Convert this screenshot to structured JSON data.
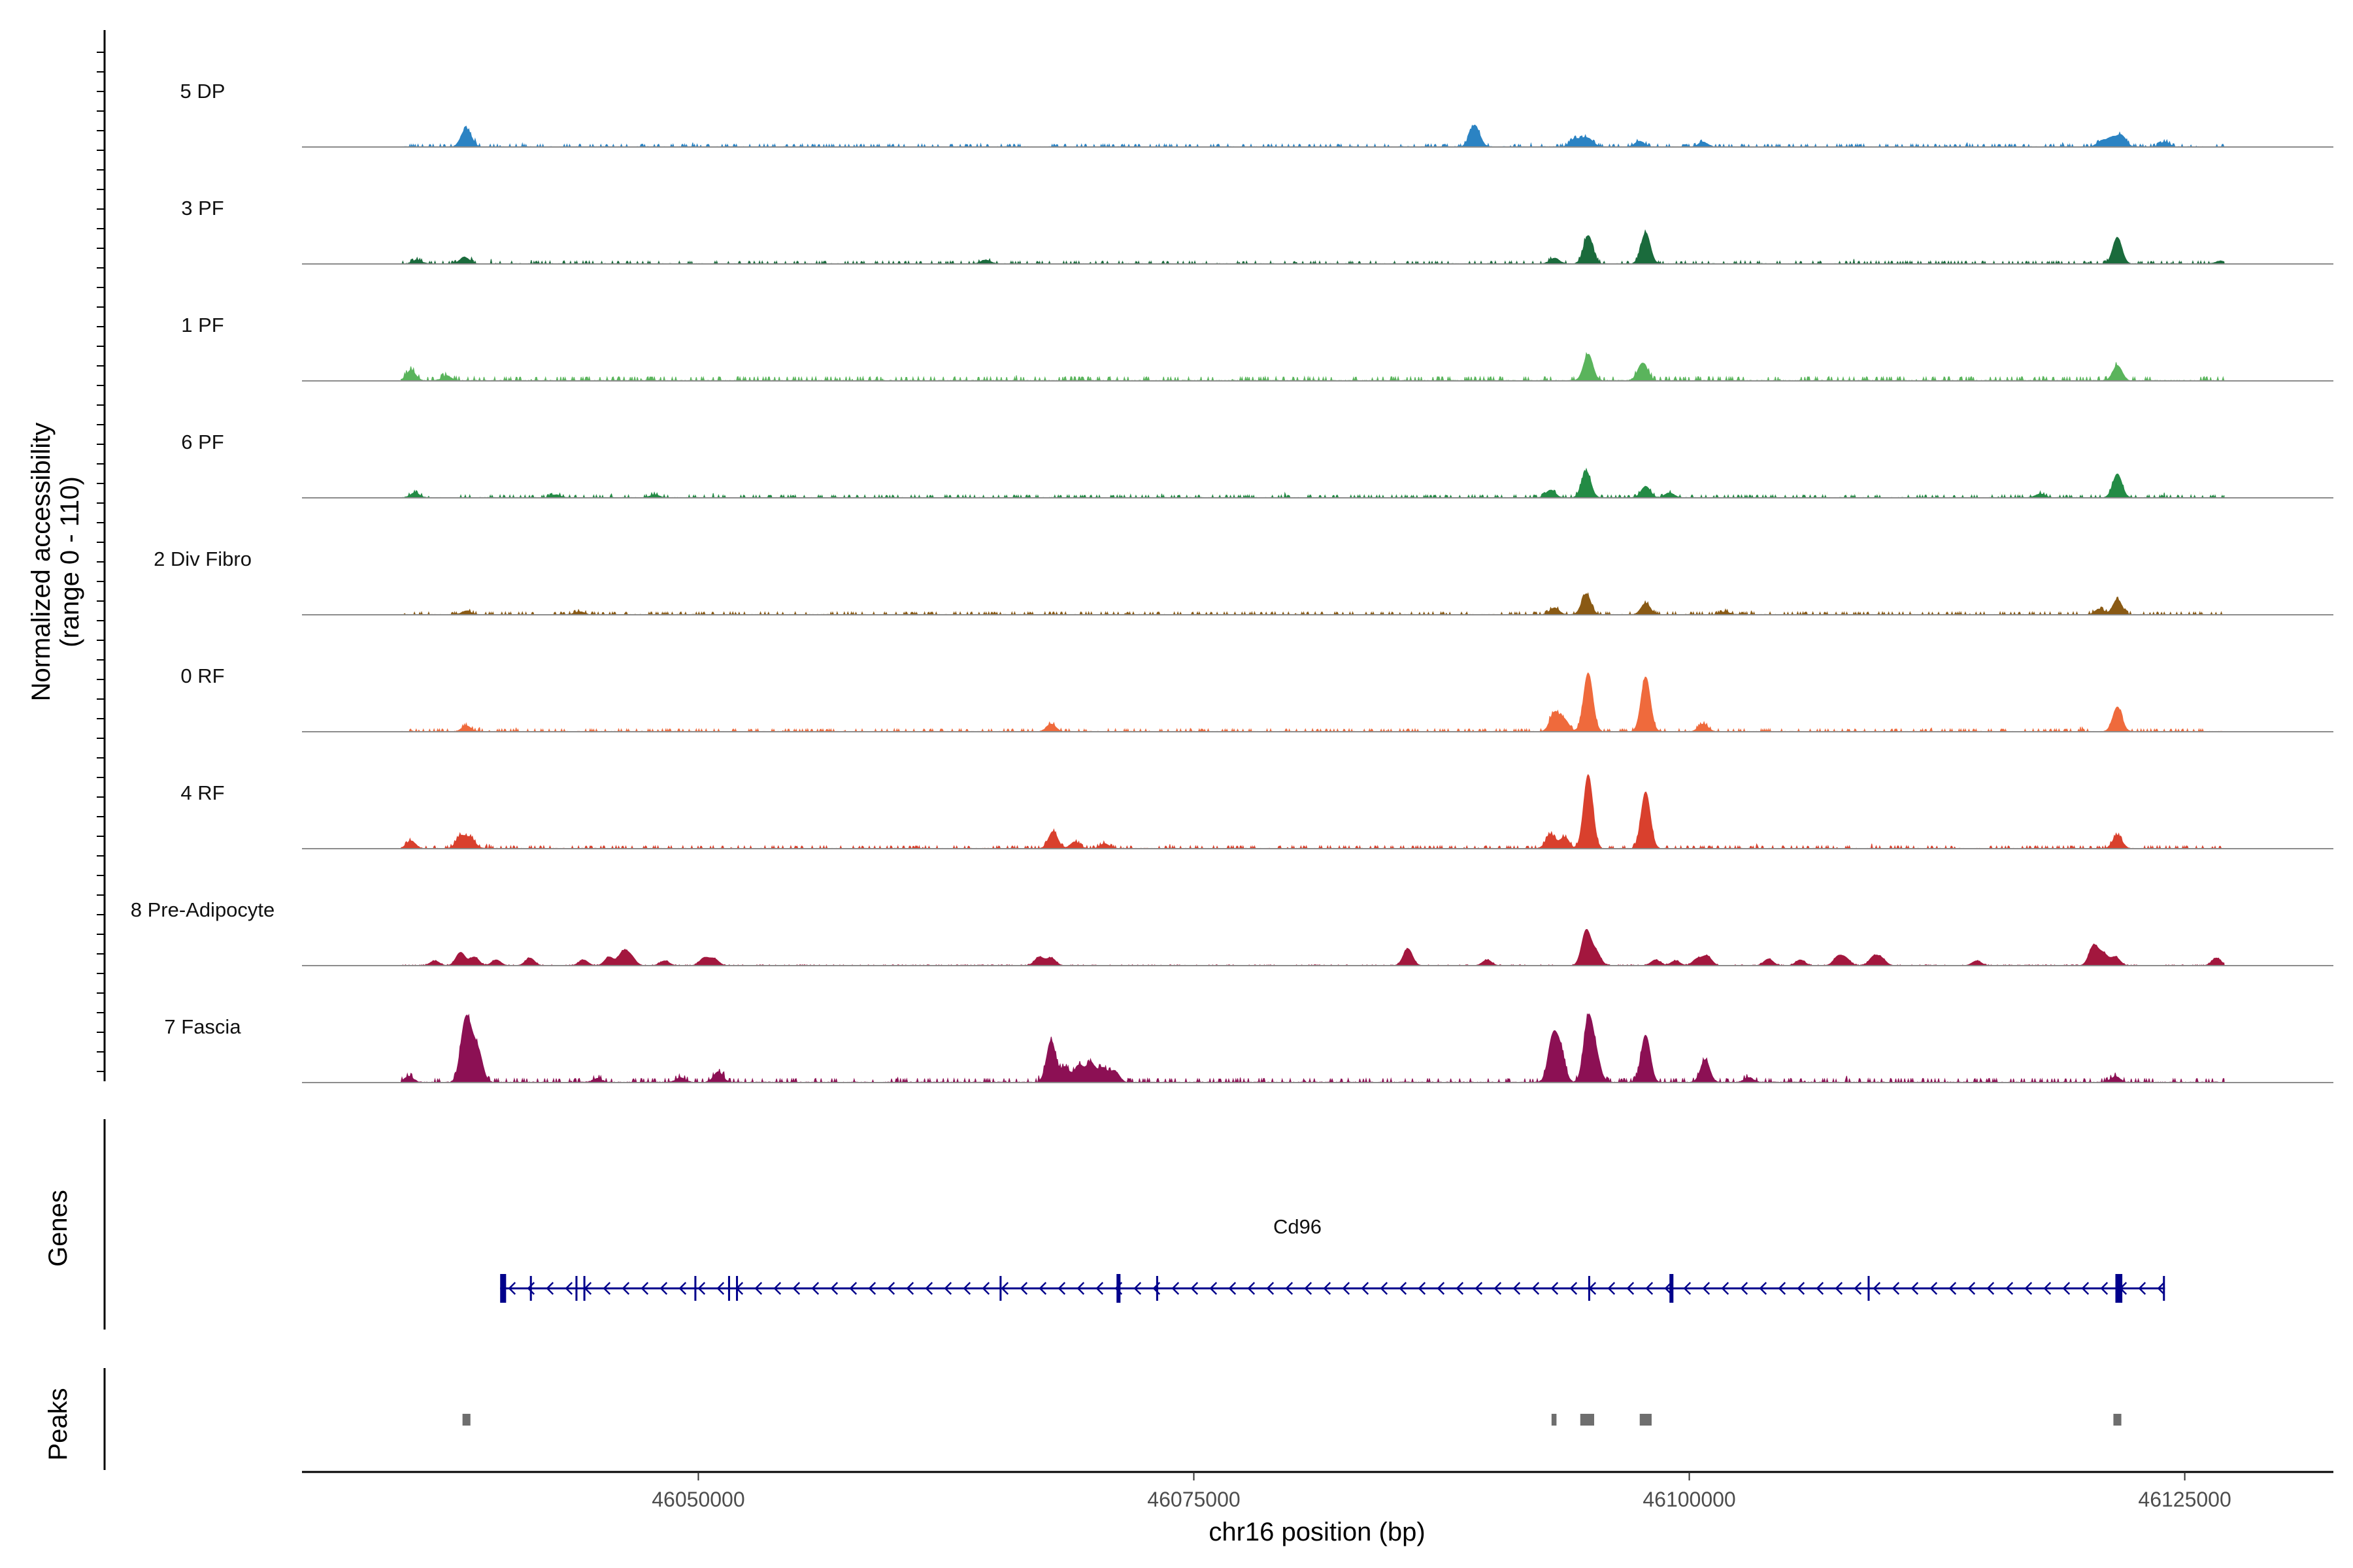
{
  "chart_data": {
    "type": "area",
    "ylabel_line1": "Normalized accessibility",
    "ylabel_line2": "(range 0 - 110)",
    "yrange": [
      0,
      110
    ],
    "xlabel": "chr16 position (bp)",
    "xlim": [
      46030000,
      46132500
    ],
    "xticks": [
      46050000,
      46075000,
      46100000,
      46125000
    ],
    "xtick_labels": [
      "46050000",
      "46075000",
      "46100000",
      "46125000"
    ],
    "region": [
      46035000,
      46127000
    ],
    "genes_label": "Genes",
    "peaks_label": "Peaks",
    "tracks": [
      {
        "name": "5 DP",
        "color": "#2b83c3",
        "baseline": 1,
        "peaks": [
          [
            46038200,
            12
          ],
          [
            46038400,
            9
          ],
          [
            46089100,
            16
          ],
          [
            46089300,
            9
          ],
          [
            46094200,
            8
          ],
          [
            46094700,
            7
          ],
          [
            46095000,
            5
          ],
          [
            46097500,
            6
          ],
          [
            46100700,
            5
          ],
          [
            46121300,
            9
          ],
          [
            46121800,
            12
          ],
          [
            46120800,
            6
          ],
          [
            46124000,
            5
          ]
        ]
      },
      {
        "name": "3 PF",
        "color": "#1a6b3c",
        "baseline": 1,
        "peaks": [
          [
            46035800,
            4
          ],
          [
            46038200,
            7
          ],
          [
            46064500,
            4
          ],
          [
            46093200,
            6
          ],
          [
            46094900,
            30
          ],
          [
            46097800,
            33
          ],
          [
            46121600,
            28
          ],
          [
            46126800,
            3
          ]
        ]
      },
      {
        "name": "1 PF",
        "color": "#5ab45c",
        "baseline": 1.5,
        "peaks": [
          [
            46035500,
            11
          ],
          [
            46037300,
            5
          ],
          [
            46094900,
            28
          ],
          [
            46097700,
            15
          ],
          [
            46121600,
            16
          ],
          [
            46097500,
            5
          ]
        ]
      },
      {
        "name": "6 PF",
        "color": "#238b45",
        "baseline": 1,
        "peaks": [
          [
            46035700,
            5
          ],
          [
            46042800,
            3
          ],
          [
            46047800,
            3
          ],
          [
            46093000,
            8
          ],
          [
            46094800,
            28
          ],
          [
            46097800,
            12
          ],
          [
            46099000,
            5
          ],
          [
            46121600,
            25
          ],
          [
            46117700,
            4
          ]
        ]
      },
      {
        "name": "2 Div Fibro",
        "color": "#8a5a14",
        "baseline": 1,
        "peaks": [
          [
            46038300,
            4
          ],
          [
            46044000,
            3
          ],
          [
            46093200,
            7
          ],
          [
            46094800,
            22
          ],
          [
            46097800,
            12
          ],
          [
            46120700,
            6
          ],
          [
            46121600,
            16
          ],
          [
            46101800,
            3
          ]
        ]
      },
      {
        "name": "0 RF",
        "color": "#ef6a3c",
        "baseline": 1,
        "peaks": [
          [
            46038300,
            6
          ],
          [
            46067800,
            8
          ],
          [
            46093200,
            20
          ],
          [
            46093700,
            12
          ],
          [
            46094900,
            62
          ],
          [
            46097800,
            58
          ],
          [
            46100700,
            8
          ],
          [
            46121600,
            26
          ]
        ]
      },
      {
        "name": "4 RF",
        "color": "#d9402d",
        "baseline": 1,
        "peaks": [
          [
            46035500,
            8
          ],
          [
            46038000,
            13
          ],
          [
            46038500,
            11
          ],
          [
            46067900,
            18
          ],
          [
            46069000,
            7
          ],
          [
            46070500,
            5
          ],
          [
            46093000,
            15
          ],
          [
            46093700,
            12
          ],
          [
            46094900,
            78
          ],
          [
            46097800,
            60
          ],
          [
            46121600,
            14
          ]
        ]
      },
      {
        "name": "8 Pre-Adipocyte",
        "color": "#a3173e",
        "baseline": 0.3,
        "peaks": [
          [
            46036700,
            5
          ],
          [
            46038000,
            14
          ],
          [
            46038700,
            9
          ],
          [
            46039800,
            6
          ],
          [
            46041500,
            8
          ],
          [
            46044200,
            6
          ],
          [
            46045500,
            9
          ],
          [
            46046200,
            14
          ],
          [
            46046600,
            9
          ],
          [
            46048300,
            5
          ],
          [
            46050300,
            8
          ],
          [
            46050800,
            7
          ],
          [
            46067200,
            9
          ],
          [
            46067800,
            8
          ],
          [
            46085800,
            18
          ],
          [
            46089800,
            6
          ],
          [
            46094800,
            37
          ],
          [
            46095300,
            14
          ],
          [
            46098300,
            6
          ],
          [
            46099300,
            5
          ],
          [
            46100400,
            7
          ],
          [
            46100900,
            10
          ],
          [
            46104000,
            7
          ],
          [
            46105600,
            6
          ],
          [
            46107500,
            9
          ],
          [
            46107900,
            7
          ],
          [
            46109300,
            9
          ],
          [
            46109700,
            7
          ],
          [
            46114500,
            5
          ],
          [
            46120400,
            21
          ],
          [
            46120900,
            12
          ],
          [
            46121500,
            9
          ],
          [
            46126600,
            8
          ]
        ]
      },
      {
        "name": "7 Fascia",
        "color": "#8c1054",
        "baseline": 1.5,
        "peaks": [
          [
            46035400,
            6
          ],
          [
            46038200,
            52
          ],
          [
            46038500,
            33
          ],
          [
            46038900,
            30
          ],
          [
            46044900,
            4
          ],
          [
            46049100,
            5
          ],
          [
            46051000,
            11
          ],
          [
            46067800,
            44
          ],
          [
            46068500,
            16
          ],
          [
            46069200,
            18
          ],
          [
            46069800,
            20
          ],
          [
            46070400,
            15
          ],
          [
            46071000,
            12
          ],
          [
            46093100,
            45
          ],
          [
            46093500,
            32
          ],
          [
            46094900,
            66
          ],
          [
            46095300,
            25
          ],
          [
            46097800,
            50
          ],
          [
            46100800,
            24
          ],
          [
            46103000,
            5
          ],
          [
            46121500,
            6
          ]
        ]
      }
    ],
    "gene": {
      "name": "Cd96",
      "strand": "-",
      "start": 46040000,
      "end": 46124000,
      "color": "#00008b",
      "exons": [
        [
          46040000,
          46040300
        ],
        [
          46041500,
          46041600
        ],
        [
          46043800,
          46043900
        ],
        [
          46044200,
          46044300
        ],
        [
          46049800,
          46049900
        ],
        [
          46051500,
          46051600
        ],
        [
          46051900,
          46052000
        ],
        [
          46065200,
          46065300
        ],
        [
          46071100,
          46071300
        ],
        [
          46073100,
          46073200
        ],
        [
          46094900,
          46095000
        ],
        [
          46099000,
          46099200
        ],
        [
          46109000,
          46109100
        ],
        [
          46121500,
          46121850
        ],
        [
          46123900,
          46124000
        ]
      ]
    },
    "peak_regions": [
      [
        46038100,
        46038500
      ],
      [
        46093050,
        46093300
      ],
      [
        46094500,
        46095200
      ],
      [
        46097500,
        46098100
      ],
      [
        46121400,
        46121800
      ]
    ]
  }
}
